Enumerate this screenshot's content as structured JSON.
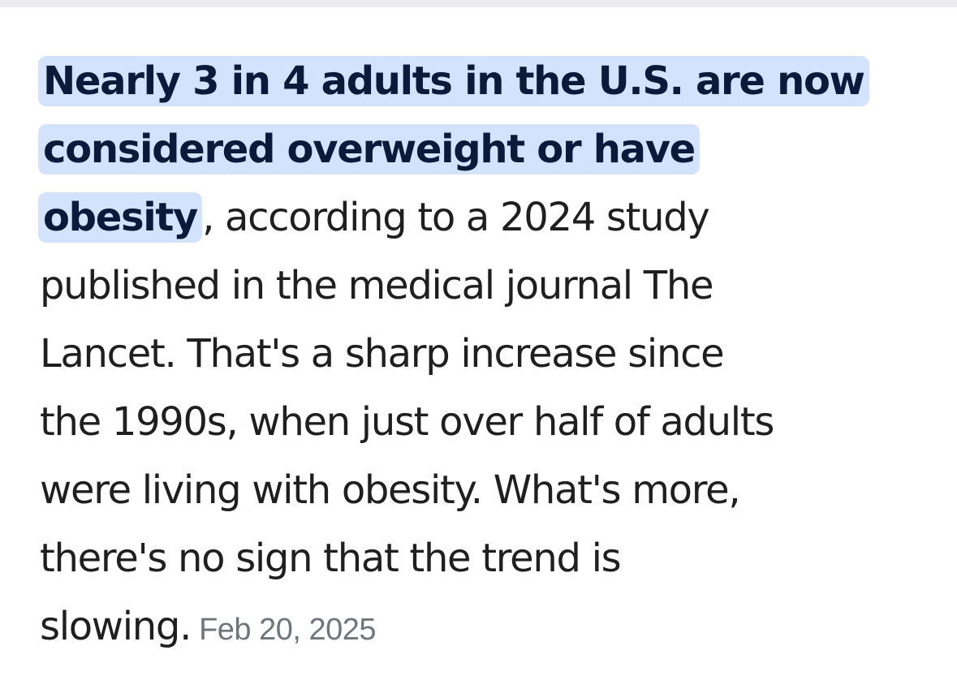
{
  "snippet": {
    "highlight_line1": "Nearly 3 in 4 adults in the U.S. are now",
    "highlight_line2": "considered overweight or have",
    "highlight_line3": "obesity",
    "line3_rest": ", according to a 2024 study",
    "line4": "published in the medical journal The",
    "line5": "Lancet. That's a sharp increase since",
    "line6": "the 1990s, when just over half of adults",
    "line7": "were living with obesity. What's more,",
    "line8": "there's no sign that the trend is",
    "line9": "slowing.",
    "date": "Feb 20, 2025"
  },
  "colors": {
    "highlight_background": "#d3e3fd",
    "highlight_text": "#0b1a3a",
    "body_text": "#1f1f1f",
    "date_text": "#70757a"
  }
}
